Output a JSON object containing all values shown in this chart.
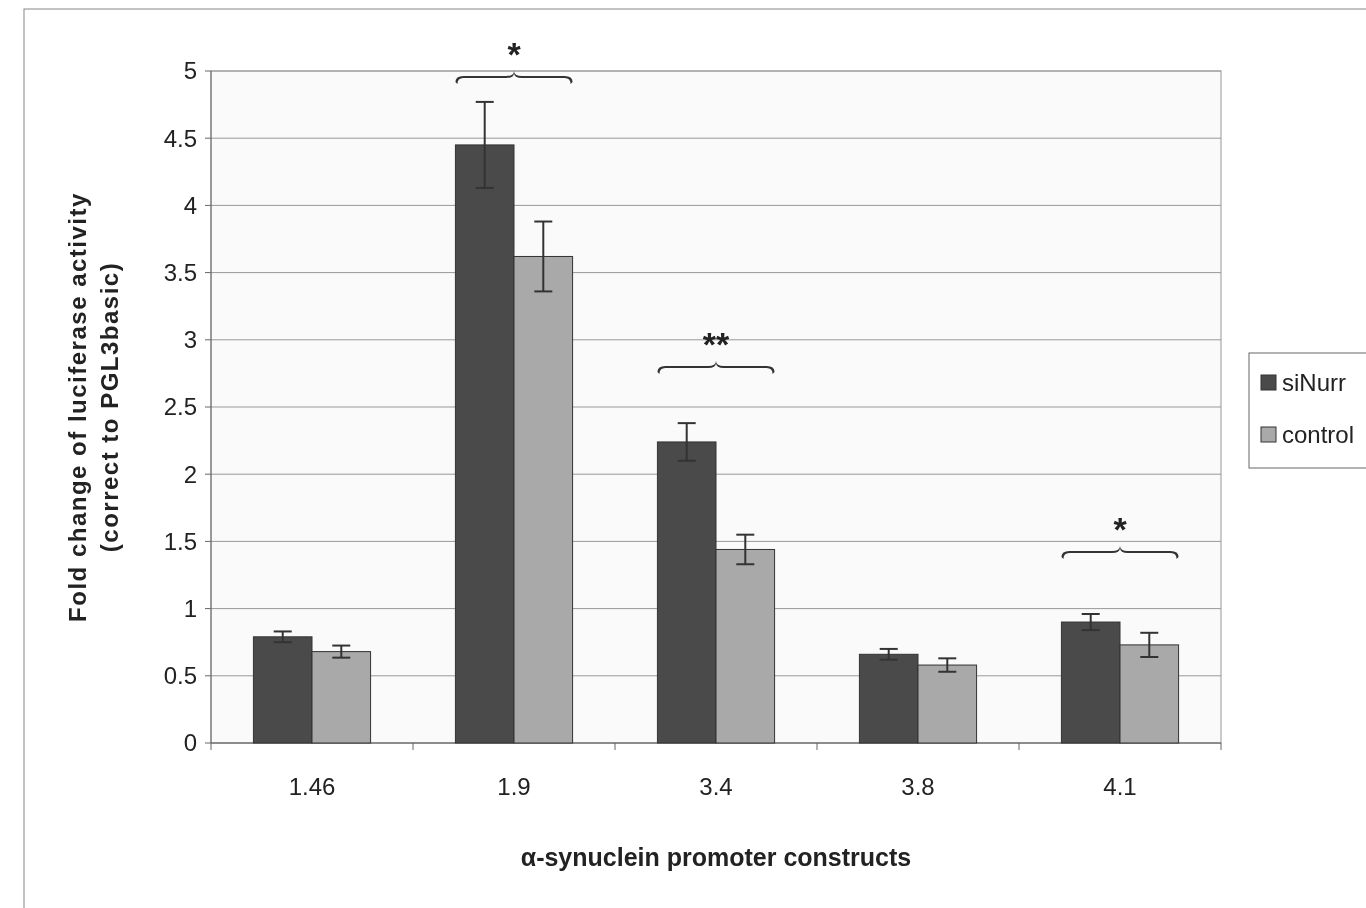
{
  "chart_data": {
    "type": "bar",
    "xlabel": "α-synuclein promoter constructs",
    "ylabel": "Fold change of luciferase activity\n(correct to PGL3basic)",
    "categories": [
      "1.46",
      "1.9",
      "3.4",
      "3.8",
      "4.1"
    ],
    "series": [
      {
        "name": "siNurr",
        "color": "#4a4a4a",
        "values": [
          0.79,
          4.45,
          2.24,
          0.66,
          0.9
        ],
        "errors": [
          0.04,
          0.32,
          0.14,
          0.04,
          0.06
        ]
      },
      {
        "name": "control",
        "color": "#a9a9a9",
        "values": [
          0.68,
          3.62,
          1.44,
          0.58,
          0.73
        ],
        "errors": [
          0.045,
          0.26,
          0.11,
          0.05,
          0.09
        ]
      }
    ],
    "ylim": [
      0,
      5
    ],
    "yticks": [
      0,
      0.5,
      1,
      1.5,
      2,
      2.5,
      3,
      3.5,
      4,
      4.5,
      5
    ],
    "grid": "y",
    "legend": "right",
    "annotations": [
      "*",
      "**",
      "*"
    ]
  }
}
